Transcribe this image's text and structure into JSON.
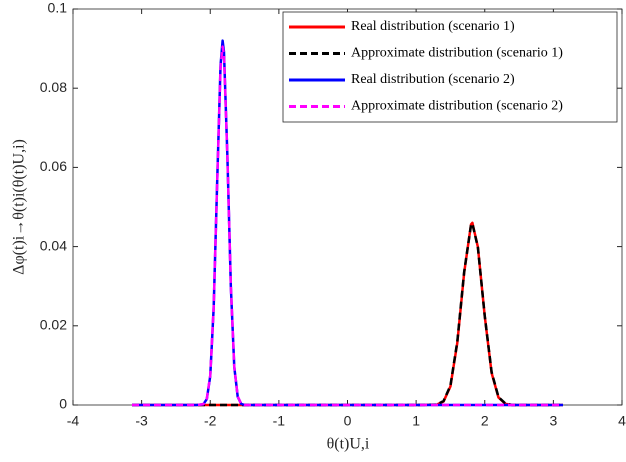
{
  "chart_data": {
    "type": "line",
    "xlabel": "θ(t)U,i",
    "ylabel": "Δφ(t)i→θ(t)i(θ(t)U,i)",
    "x": [
      -3.14,
      -2.5,
      -2.2,
      -2.1,
      -2.05,
      -2.0,
      -1.95,
      -1.9,
      -1.85,
      -1.82,
      -1.8,
      -1.75,
      -1.7,
      -1.65,
      -1.6,
      -1.55,
      -1.5,
      -1.4,
      1.0,
      1.3,
      1.4,
      1.5,
      1.6,
      1.7,
      1.8,
      1.82,
      1.9,
      2.0,
      2.1,
      2.2,
      2.3,
      2.4,
      2.6,
      3.14
    ],
    "series": [
      {
        "name": "Real distribution (scenario 1)",
        "color": "#ff0000",
        "dash": false,
        "values": [
          0,
          0,
          0,
          0,
          0,
          0,
          0,
          0,
          0,
          0,
          0,
          0,
          0,
          0,
          0,
          0,
          0,
          0,
          0,
          0.0001,
          0.0009,
          0.0047,
          0.0157,
          0.0334,
          0.0456,
          0.046,
          0.0399,
          0.0224,
          0.0081,
          0.0019,
          0.0003,
          0,
          0,
          0
        ]
      },
      {
        "name": "Approximate distribution (scenario 1)",
        "color": "#000000",
        "dash": true,
        "values": [
          0,
          0,
          0,
          0,
          0,
          0,
          0,
          0,
          0,
          0,
          0,
          0,
          0,
          0,
          0,
          0,
          0,
          0,
          0,
          0.0001,
          0.001,
          0.0049,
          0.016,
          0.0336,
          0.0455,
          0.0458,
          0.0398,
          0.0225,
          0.0083,
          0.002,
          0.0004,
          0,
          0,
          0
        ]
      },
      {
        "name": "Real distribution (scenario 2)",
        "color": "#0000ff",
        "dash": false,
        "values": [
          0,
          0,
          0,
          0.0002,
          0.0015,
          0.0073,
          0.0246,
          0.0558,
          0.0858,
          0.092,
          0.0892,
          0.0627,
          0.0299,
          0.0096,
          0.0021,
          0.0003,
          0,
          0,
          0,
          0,
          0,
          0,
          0,
          0,
          0,
          0,
          0,
          0,
          0,
          0,
          0,
          0,
          0,
          0
        ]
      },
      {
        "name": "Approximate distribution (scenario 2)",
        "color": "#ff00ff",
        "dash": true,
        "values": [
          0,
          0,
          0,
          0.0002,
          0.0016,
          0.0075,
          0.0248,
          0.0556,
          0.0852,
          0.0905,
          0.0885,
          0.0625,
          0.03,
          0.0097,
          0.0022,
          0.0003,
          0,
          0,
          0,
          0,
          0,
          0,
          0,
          0,
          0,
          0,
          0,
          0,
          0,
          0,
          0,
          0,
          0,
          0
        ]
      }
    ],
    "xlim": [
      -4,
      4
    ],
    "xticks": [
      -4,
      -3,
      -2,
      -1,
      0,
      1,
      2,
      3,
      4
    ],
    "ylim": [
      0,
      0.1
    ],
    "yticks": [
      0,
      0.02,
      0.04,
      0.06,
      0.08,
      0.1
    ],
    "grid": false,
    "legend": "top-right"
  }
}
